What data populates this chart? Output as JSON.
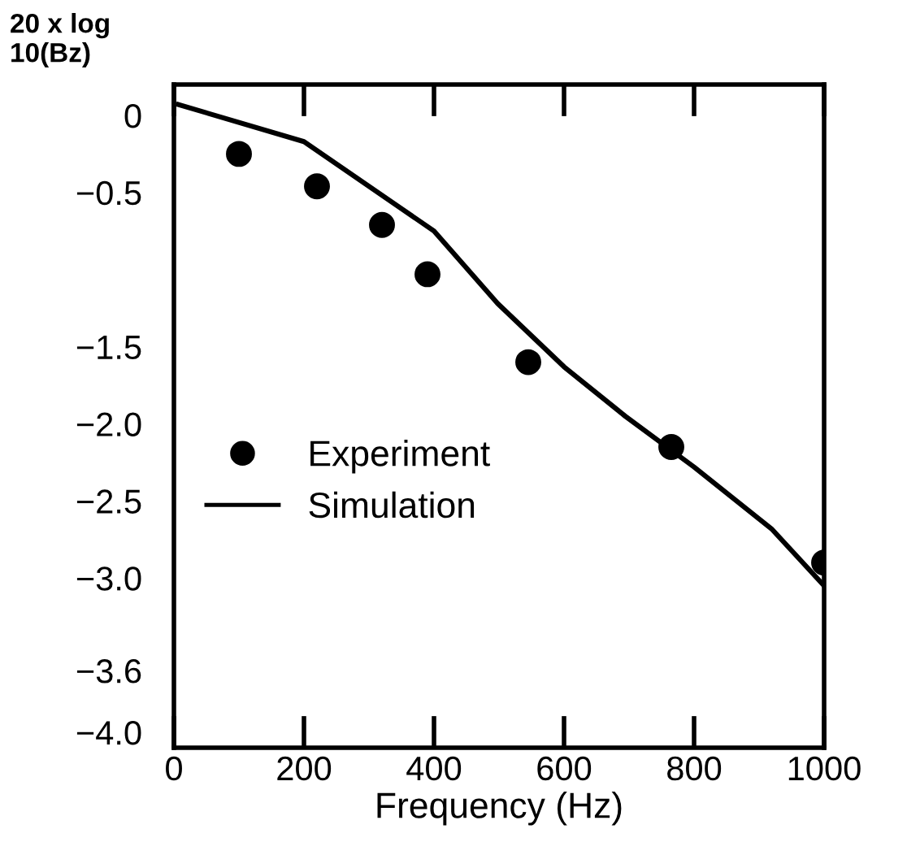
{
  "chart_data": {
    "type": "scatter",
    "xlabel": "Frequency (Hz)",
    "ylabel": "20 x log\n10(Bz)",
    "series": [
      {
        "name": "Experiment",
        "color": "#000000",
        "marker": "circle",
        "x": [
          100,
          220,
          320,
          390,
          545,
          765,
          1000
        ],
        "values": [
          -0.25,
          -0.46,
          -0.71,
          -1.03,
          -1.6,
          -2.15,
          -2.9
        ]
      },
      {
        "name": "Simulation",
        "type": "line",
        "color": "#000000",
        "marker": "none",
        "line_style": "solid",
        "x": [
          7,
          200,
          400,
          498,
          600,
          694,
          800,
          919,
          1000
        ],
        "values": [
          0.07,
          -0.17,
          -0.75,
          -1.22,
          -1.63,
          -1.95,
          -2.28,
          -2.68,
          -3.05
        ]
      }
    ],
    "xlim": [
      0,
      1000
    ],
    "xticks": [
      0,
      200,
      400,
      600,
      800,
      1000
    ],
    "ylim": [
      -4.1,
      0.2
    ],
    "yticks": [
      0,
      -0.5,
      -1.5,
      {
        "value": -2,
        "label": "−2.0"
      },
      -2.5,
      {
        "value": -3,
        "label": "−3.0"
      },
      -3.6,
      {
        "value": -4,
        "label": "−4.0"
      }
    ],
    "grid": false,
    "legend": "left"
  }
}
